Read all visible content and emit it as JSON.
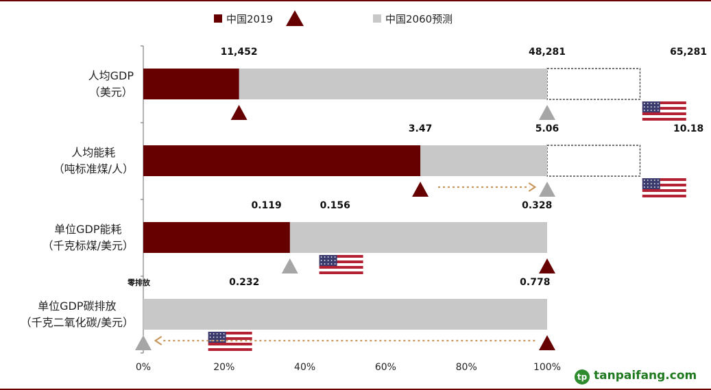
{
  "legend": {
    "china_2019": "中国2019",
    "china_2060": "中国2060预测"
  },
  "colors": {
    "china_2019": "#660000",
    "china_2060": "#c8c8c8",
    "triangle_gray": "#a6a6a6",
    "arrow": "#c8955a",
    "brand": "#2e8b2e"
  },
  "chart_data": {
    "type": "bar",
    "orientation": "horizontal-stacked",
    "xlim": [
      0,
      100
    ],
    "xticks": [
      "0%",
      "20%",
      "40%",
      "60%",
      "80%",
      "100%"
    ],
    "zero_emission_label": "零排放",
    "rows": [
      {
        "label_line1": "人均GDP",
        "label_line2": "（美元）",
        "china_2019_pct": 23.7,
        "china_2060_pct": 100,
        "us_box_pct": 123,
        "values": [
          {
            "text": "11,452",
            "at_pct": 23.7
          },
          {
            "text": "48,281",
            "at_pct": 100
          },
          {
            "text": "65,281",
            "at_pct": 135
          }
        ],
        "dark_triangle_pct": 23.7,
        "gray_triangle_pct": 100,
        "us_flag_pct": 129,
        "arrow": null
      },
      {
        "label_line1": "人均能耗",
        "label_line2": "（吨标准煤/人）",
        "china_2019_pct": 68.6,
        "china_2060_pct": 100,
        "us_box_pct": 123,
        "values": [
          {
            "text": "3.47",
            "at_pct": 68.6
          },
          {
            "text": "5.06",
            "at_pct": 100
          },
          {
            "text": "10.18",
            "at_pct": 135
          }
        ],
        "dark_triangle_pct": 68.6,
        "gray_triangle_pct": 100,
        "us_flag_pct": 129,
        "arrow": {
          "from_pct": 73,
          "to_pct": 97
        }
      },
      {
        "label_line1": "单位GDP能耗",
        "label_line2": "（千克标煤/美元）",
        "china_2019_pct": 36.3,
        "china_2060_pct": 100,
        "us_box_pct": null,
        "values": [
          {
            "text": "0.119",
            "at_pct": 30.5
          },
          {
            "text": "0.156",
            "at_pct": 47.5
          },
          {
            "text": "0.328",
            "at_pct": 97.5
          }
        ],
        "dark_triangle_pct": 100,
        "gray_triangle_pct": 36.3,
        "us_flag_pct": 49,
        "arrow": null
      },
      {
        "label_line1": "单位GDP碳排放",
        "label_line2": "（千克二氧化碳/美元）",
        "china_2019_pct": 0,
        "china_2060_pct": 100,
        "us_box_pct": null,
        "values": [
          {
            "text": "0.232",
            "at_pct": 25
          },
          {
            "text": "0.778",
            "at_pct": 97
          }
        ],
        "dark_triangle_pct": 100,
        "gray_triangle_pct": 0,
        "us_flag_pct": 21.5,
        "arrow": {
          "from_pct": 97,
          "to_pct": 3
        }
      }
    ]
  },
  "watermark": {
    "logo_letter": "tp",
    "text": "tanpaifang.com"
  }
}
